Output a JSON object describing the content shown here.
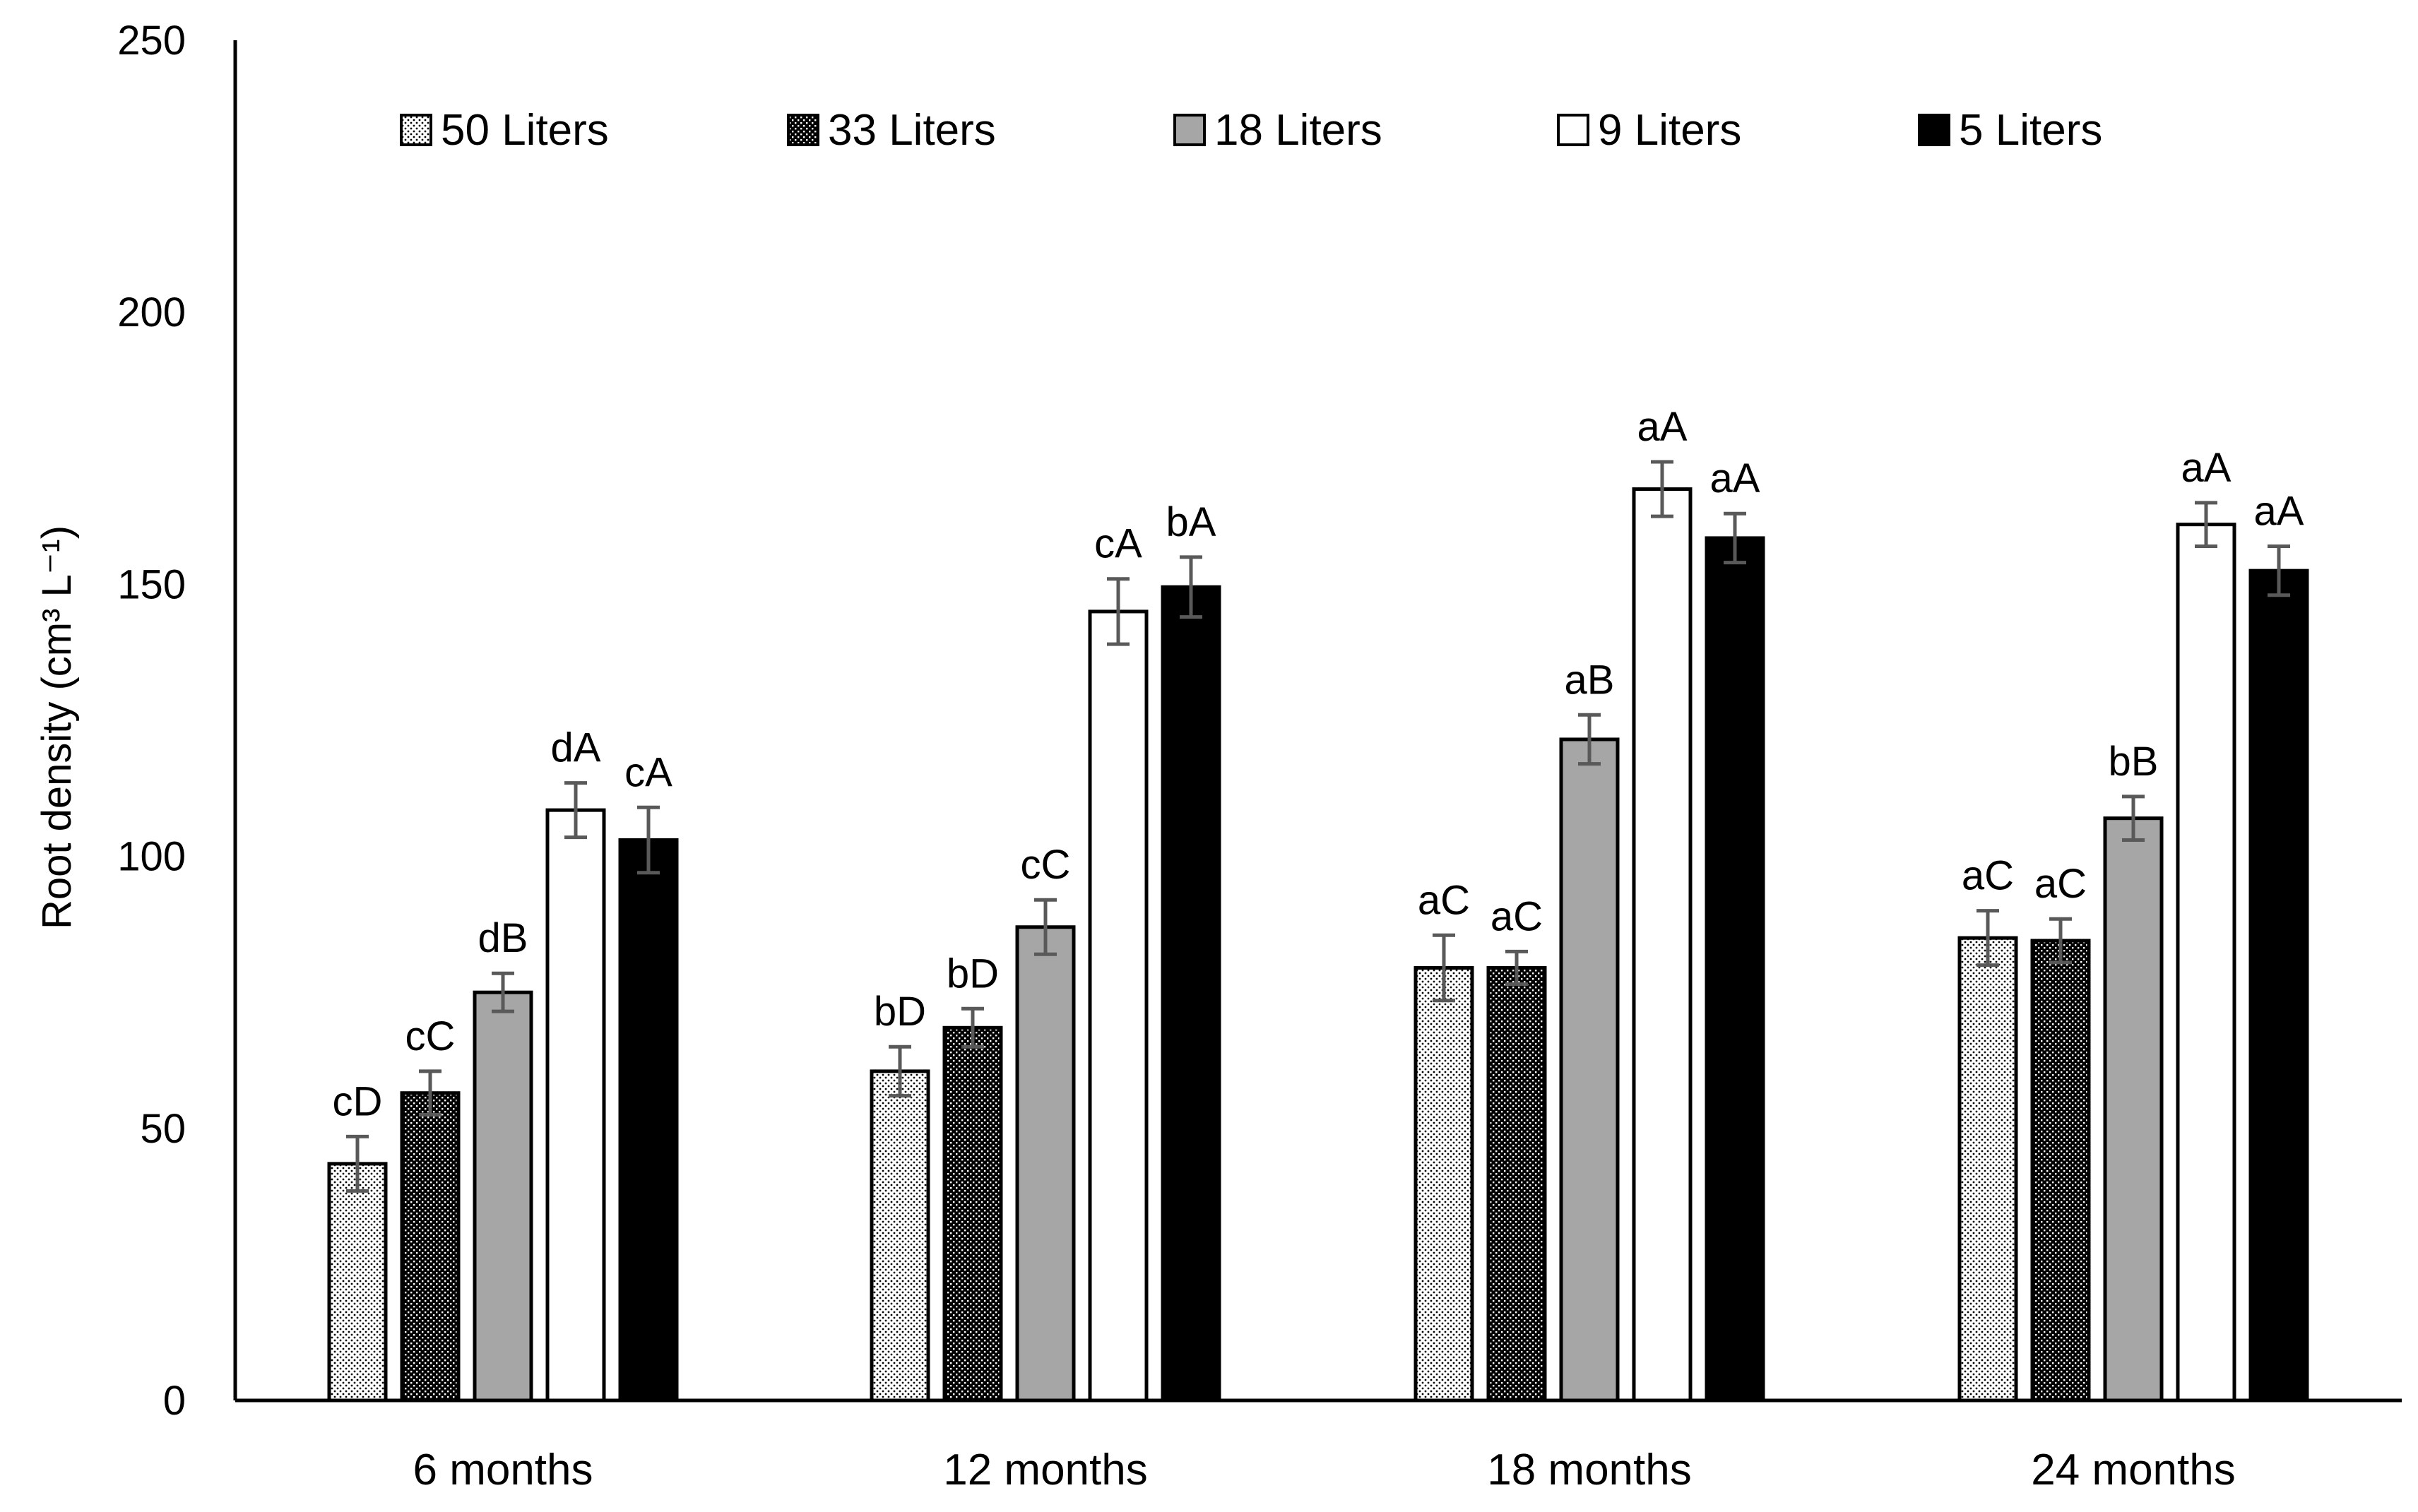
{
  "chart_data": {
    "type": "bar",
    "title": "",
    "xlabel": "",
    "ylabel": "Root density (cm³ L⁻¹)",
    "ylim": [
      0,
      250
    ],
    "yticks": [
      0,
      50,
      100,
      150,
      200,
      250
    ],
    "categories": [
      "6 months",
      "12 months",
      "18 months",
      "24 months"
    ],
    "legend_position": "top",
    "series": [
      {
        "name": "50 Liters",
        "pattern": "dots-light",
        "values": [
          43.5,
          60.5,
          79.5,
          85.0
        ],
        "errors": [
          5,
          4.5,
          6,
          5
        ],
        "labels": [
          "cD",
          "bD",
          "aC",
          "aC"
        ]
      },
      {
        "name": "33 Liters",
        "pattern": "dots-dense",
        "values": [
          56.5,
          68.5,
          79.5,
          84.5
        ],
        "errors": [
          4,
          3.5,
          3,
          4
        ],
        "labels": [
          "cC",
          "bD",
          "aC",
          "aC"
        ]
      },
      {
        "name": "18 Liters",
        "pattern": "solid-gray",
        "values": [
          75.0,
          87.0,
          121.5,
          107.0
        ],
        "errors": [
          3.5,
          5,
          4.5,
          4
        ],
        "labels": [
          "dB",
          "cC",
          "aB",
          "bB"
        ]
      },
      {
        "name": "9 Liters",
        "pattern": "white",
        "values": [
          108.5,
          145.0,
          167.5,
          161.0
        ],
        "errors": [
          5,
          6,
          5,
          4
        ],
        "labels": [
          "dA",
          "cA",
          "aA",
          "aA"
        ]
      },
      {
        "name": "5 Liters",
        "pattern": "black",
        "values": [
          103.0,
          149.5,
          158.5,
          152.5
        ],
        "errors": [
          6,
          5.5,
          4.5,
          4.5
        ],
        "labels": [
          "cA",
          "bA",
          "aA",
          "aA"
        ]
      }
    ],
    "colors": {
      "gray": "#a6a6a6",
      "black": "#000000",
      "white": "#ffffff",
      "errorbar": "#595959"
    }
  }
}
